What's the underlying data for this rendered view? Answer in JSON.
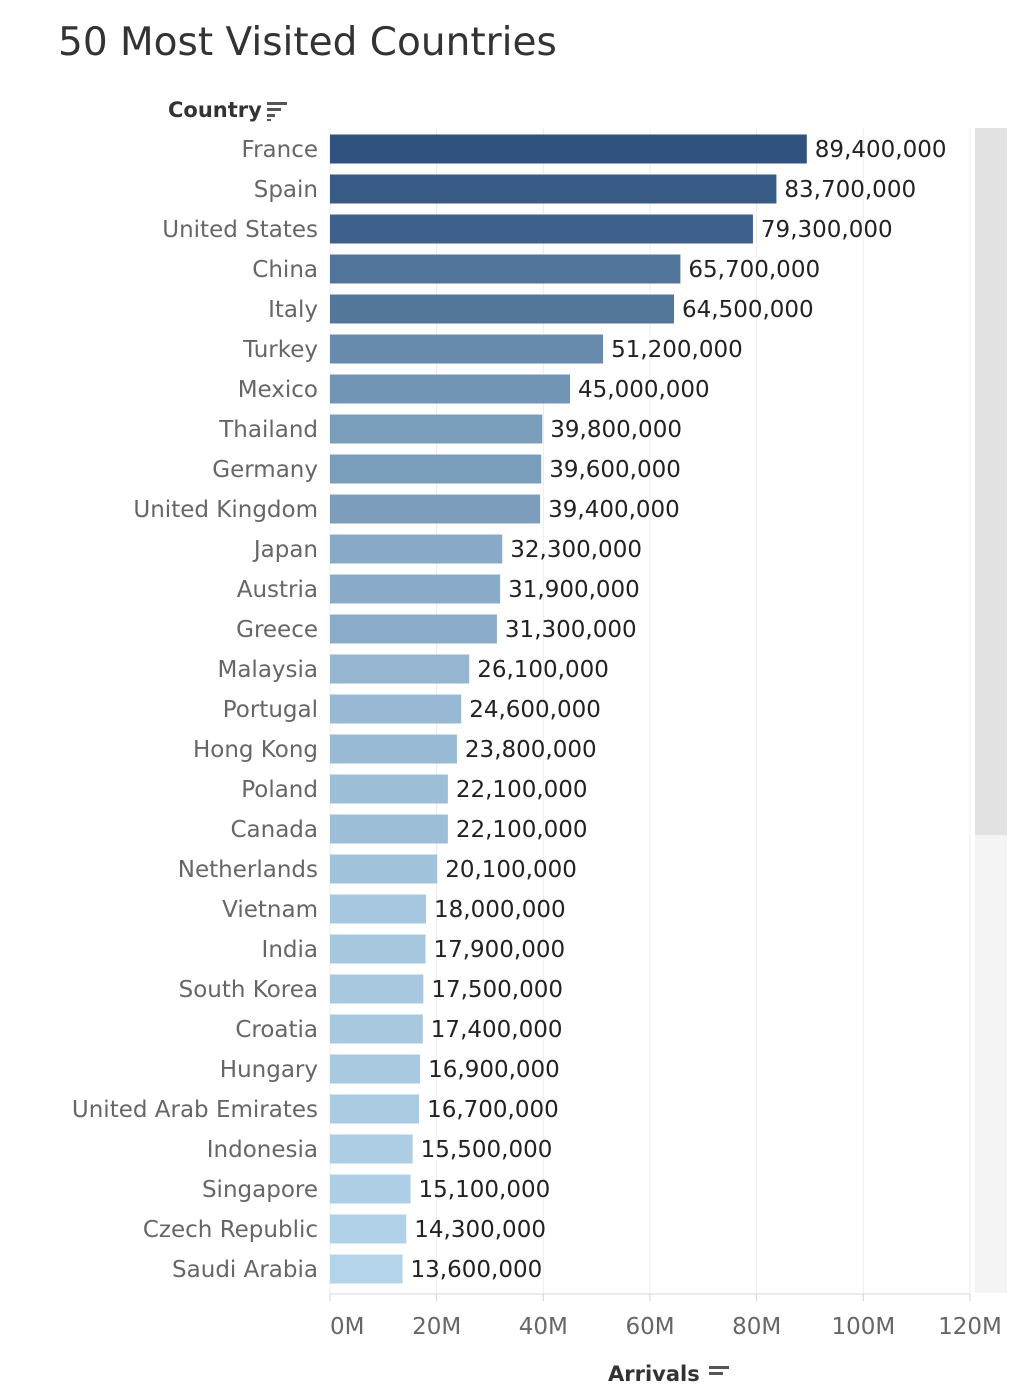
{
  "chart_data": {
    "type": "bar",
    "orientation": "horizontal",
    "title": "50 Most Visited Countries",
    "ylabel": "Country",
    "xlabel": "Arrivals",
    "xlim": [
      0,
      120000000
    ],
    "x_ticks": [
      {
        "value": 0,
        "label": "0M"
      },
      {
        "value": 20000000,
        "label": "20M"
      },
      {
        "value": 40000000,
        "label": "40M"
      },
      {
        "value": 60000000,
        "label": "60M"
      },
      {
        "value": 80000000,
        "label": "80M"
      },
      {
        "value": 100000000,
        "label": "100M"
      },
      {
        "value": 120000000,
        "label": "120M"
      }
    ],
    "grid": true,
    "color_low": "#b4d4ea",
    "color_high": "#2f537e",
    "categories": [
      "France",
      "Spain",
      "United States",
      "China",
      "Italy",
      "Turkey",
      "Mexico",
      "Thailand",
      "Germany",
      "United Kingdom",
      "Japan",
      "Austria",
      "Greece",
      "Malaysia",
      "Portugal",
      "Hong Kong",
      "Poland",
      "Canada",
      "Netherlands",
      "Vietnam",
      "India",
      "South Korea",
      "Croatia",
      "Hungary",
      "United Arab Emirates",
      "Indonesia",
      "Singapore",
      "Czech Republic",
      "Saudi Arabia"
    ],
    "values": [
      89400000,
      83700000,
      79300000,
      65700000,
      64500000,
      51200000,
      45000000,
      39800000,
      39600000,
      39400000,
      32300000,
      31900000,
      31300000,
      26100000,
      24600000,
      23800000,
      22100000,
      22100000,
      20100000,
      18000000,
      17900000,
      17500000,
      17400000,
      16900000,
      16700000,
      15500000,
      15100000,
      14300000,
      13600000
    ],
    "value_labels": [
      "89,400,000",
      "83,700,000",
      "79,300,000",
      "65,700,000",
      "64,500,000",
      "51,200,000",
      "45,000,000",
      "39,800,000",
      "39,600,000",
      "39,400,000",
      "32,300,000",
      "31,900,000",
      "31,300,000",
      "26,100,000",
      "24,600,000",
      "23,800,000",
      "22,100,000",
      "22,100,000",
      "20,100,000",
      "18,000,000",
      "17,900,000",
      "17,500,000",
      "17,400,000",
      "16,900,000",
      "16,700,000",
      "15,500,000",
      "15,100,000",
      "14,300,000",
      "13,600,000"
    ]
  }
}
